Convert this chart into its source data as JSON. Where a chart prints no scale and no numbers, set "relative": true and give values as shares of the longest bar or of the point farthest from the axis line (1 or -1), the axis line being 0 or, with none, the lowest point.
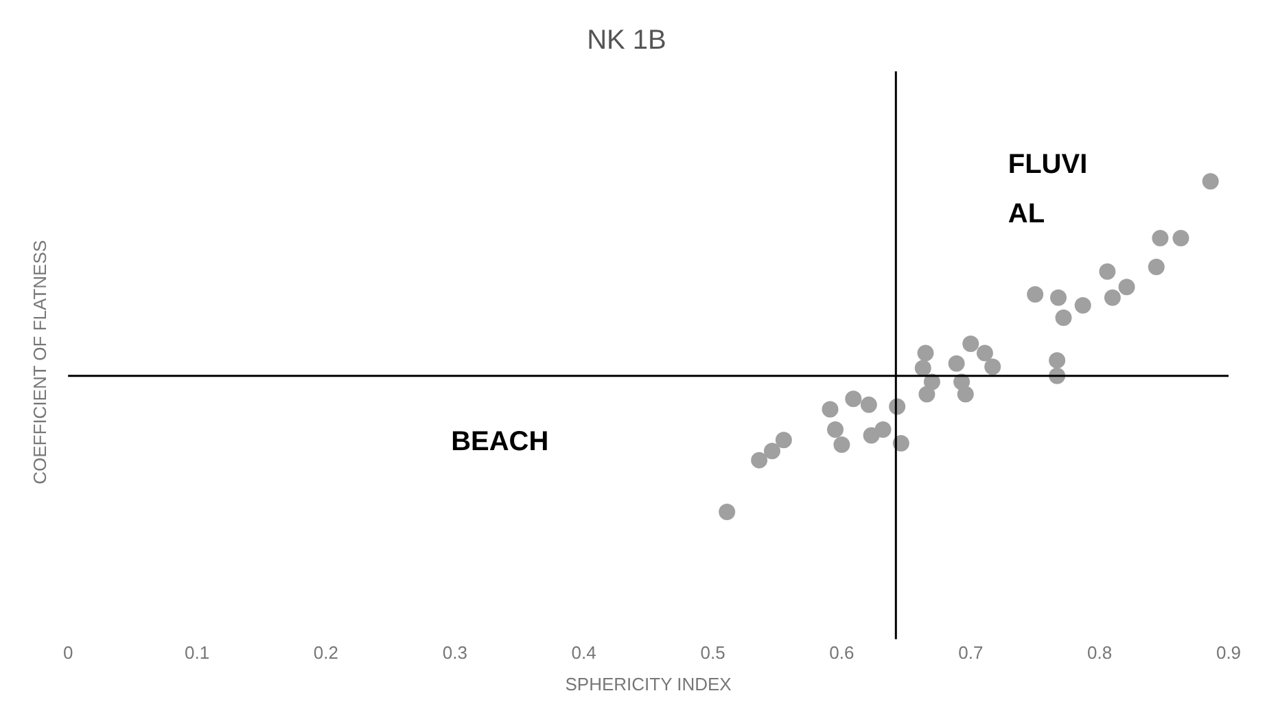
{
  "chart_data": {
    "type": "scatter",
    "title": "NK 1B",
    "xlabel": "SPHERICITY INDEX",
    "ylabel": "COEFFICIENT OF FLATNESS",
    "relative": true,
    "x": [
      0.511,
      0.536,
      0.546,
      0.555,
      0.591,
      0.595,
      0.6,
      0.609,
      0.621,
      0.623,
      0.632,
      0.643,
      0.646,
      0.665,
      0.663,
      0.666,
      0.67,
      0.689,
      0.693,
      0.696,
      0.7,
      0.711,
      0.717,
      0.767,
      0.767,
      0.75,
      0.768,
      0.772,
      0.787,
      0.806,
      0.81,
      0.821,
      0.844,
      0.847,
      0.863,
      0.886
    ],
    "series": [
      {
        "color": "#a0a0a0",
        "values": [
          0.278,
          0.391,
          0.411,
          0.435,
          0.502,
          0.458,
          0.425,
          0.525,
          0.512,
          0.445,
          0.458,
          0.508,
          0.428,
          0.625,
          0.592,
          0.535,
          0.562,
          0.602,
          0.562,
          0.535,
          0.645,
          0.625,
          0.595,
          0.609,
          0.575,
          0.753,
          0.746,
          0.702,
          0.729,
          0.803,
          0.746,
          0.769,
          0.813,
          0.876,
          0.876,
          1.0
        ]
      }
    ],
    "xlim": [
      0,
      0.9
    ],
    "xticks": [
      0,
      0.1,
      0.2,
      0.3,
      0.4,
      0.5,
      0.6,
      0.7,
      0.8,
      0.9
    ],
    "ref_lines": [
      {
        "axis": "x",
        "value": 0.642,
        "color": "#000000"
      },
      {
        "axis": "y",
        "value": 0.575,
        "color": "#000000"
      }
    ],
    "annotations": [
      "FLUVI AL",
      "BEACH"
    ],
    "grid": false,
    "legend": false,
    "marker": "circle"
  }
}
